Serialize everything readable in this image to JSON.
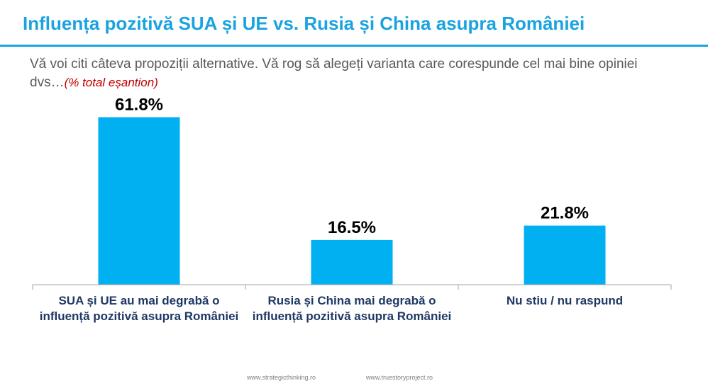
{
  "title": "Influența pozitivă SUA și UE vs. Rusia și China asupra României",
  "subtitle": "Vă voi citi câteva propoziții alternative. Vă rog să alegeți varianta care corespunde cel mai bine opiniei dvs…",
  "subtitle_note": "(% total eșantion)",
  "footer": {
    "left": "www.strategicthinking.ro",
    "right": "www.truestoryproject.ro"
  },
  "colors": {
    "accent": "#1aa3e0",
    "bar": "#00b0f0",
    "label": "#1f3864",
    "note": "#c00000"
  },
  "chart_data": {
    "type": "bar",
    "categories": [
      "SUA și UE au mai degrabă o influență pozitivă asupra României",
      "Rusia și China mai degrabă o influență pozitivă asupra României",
      "Nu stiu / nu raspund"
    ],
    "values": [
      61.8,
      16.5,
      21.8
    ],
    "value_labels": [
      "61.8%",
      "16.5%",
      "21.8%"
    ],
    "ylim": [
      0,
      75
    ],
    "grid": false,
    "legend": "none"
  }
}
